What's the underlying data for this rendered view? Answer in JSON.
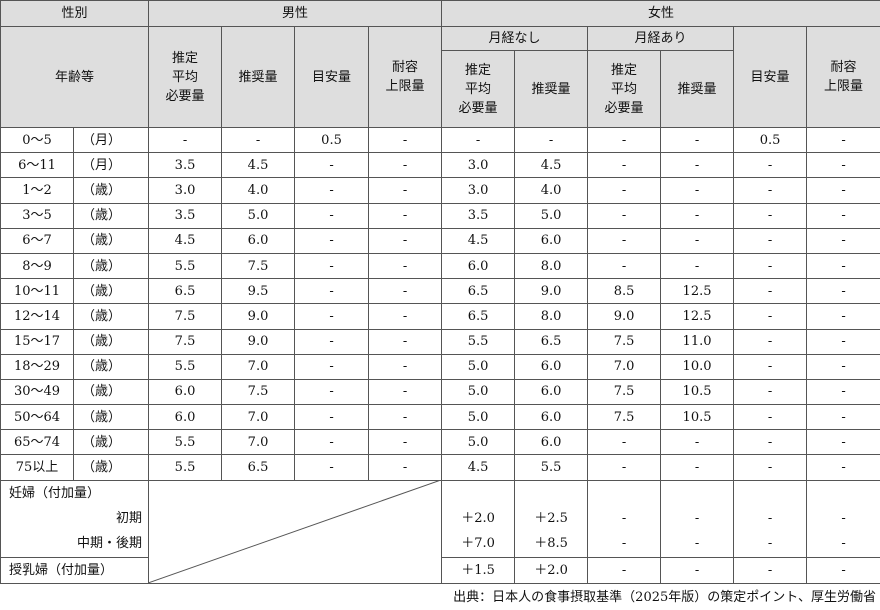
{
  "header": {
    "sex": "性別",
    "age": "年齢等",
    "male": "男性",
    "female": "女性",
    "no_menses": "月経なし",
    "menses": "月経あり",
    "ear": [
      "推定",
      "平均",
      "必要量"
    ],
    "rda": "推奨量",
    "ai": "目安量",
    "ul": [
      "耐容",
      "上限量"
    ]
  },
  "rows": [
    {
      "age": "0～5",
      "unit": "（月）",
      "v": [
        "-",
        "-",
        "0.5",
        "-",
        "-",
        "-",
        "-",
        "-",
        "0.5",
        "-"
      ]
    },
    {
      "age": "6～11",
      "unit": "（月）",
      "v": [
        "3.5",
        "4.5",
        "-",
        "-",
        "3.0",
        "4.5",
        "-",
        "-",
        "-",
        "-"
      ]
    },
    {
      "age": "1～2",
      "unit": "（歳）",
      "v": [
        "3.0",
        "4.0",
        "-",
        "-",
        "3.0",
        "4.0",
        "-",
        "-",
        "-",
        "-"
      ]
    },
    {
      "age": "3～5",
      "unit": "（歳）",
      "v": [
        "3.5",
        "5.0",
        "-",
        "-",
        "3.5",
        "5.0",
        "-",
        "-",
        "-",
        "-"
      ]
    },
    {
      "age": "6～7",
      "unit": "（歳）",
      "v": [
        "4.5",
        "6.0",
        "-",
        "-",
        "4.5",
        "6.0",
        "-",
        "-",
        "-",
        "-"
      ]
    },
    {
      "age": "8～9",
      "unit": "（歳）",
      "v": [
        "5.5",
        "7.5",
        "-",
        "-",
        "6.0",
        "8.0",
        "-",
        "-",
        "-",
        "-"
      ]
    },
    {
      "age": "10～11",
      "unit": "（歳）",
      "v": [
        "6.5",
        "9.5",
        "-",
        "-",
        "6.5",
        "9.0",
        "8.5",
        "12.5",
        "-",
        "-"
      ]
    },
    {
      "age": "12～14",
      "unit": "（歳）",
      "v": [
        "7.5",
        "9.0",
        "-",
        "-",
        "6.5",
        "8.0",
        "9.0",
        "12.5",
        "-",
        "-"
      ]
    },
    {
      "age": "15～17",
      "unit": "（歳）",
      "v": [
        "7.5",
        "9.0",
        "-",
        "-",
        "5.5",
        "6.5",
        "7.5",
        "11.0",
        "-",
        "-"
      ]
    },
    {
      "age": "18～29",
      "unit": "（歳）",
      "v": [
        "5.5",
        "7.0",
        "-",
        "-",
        "5.0",
        "6.0",
        "7.0",
        "10.0",
        "-",
        "-"
      ]
    },
    {
      "age": "30～49",
      "unit": "（歳）",
      "v": [
        "6.0",
        "7.5",
        "-",
        "-",
        "5.0",
        "6.0",
        "7.5",
        "10.5",
        "-",
        "-"
      ]
    },
    {
      "age": "50～64",
      "unit": "（歳）",
      "v": [
        "6.0",
        "7.0",
        "-",
        "-",
        "5.0",
        "6.0",
        "7.5",
        "10.5",
        "-",
        "-"
      ]
    },
    {
      "age": "65～74",
      "unit": "（歳）",
      "v": [
        "5.5",
        "7.0",
        "-",
        "-",
        "5.0",
        "6.0",
        "-",
        "-",
        "-",
        "-"
      ]
    },
    {
      "age": "75以上",
      "unit": "（歳）",
      "v": [
        "5.5",
        "6.5",
        "-",
        "-",
        "4.5",
        "5.5",
        "-",
        "-",
        "-",
        "-"
      ]
    }
  ],
  "pregnant": {
    "label": "妊婦（付加量）",
    "early": {
      "label": "初期",
      "v": [
        "＋2.0",
        "＋2.5",
        "-",
        "-",
        "-",
        "-"
      ]
    },
    "mid_late": {
      "label": "中期・後期",
      "v": [
        "＋7.0",
        "＋8.5",
        "-",
        "-",
        "-",
        "-"
      ]
    }
  },
  "lactating": {
    "label": "授乳婦（付加量）",
    "v": [
      "＋1.5",
      "＋2.0",
      "-",
      "-",
      "-",
      "-"
    ]
  },
  "caption": "出典：日本人の食事摂取基準（2025年版）の策定ポイント、厚生労働省"
}
